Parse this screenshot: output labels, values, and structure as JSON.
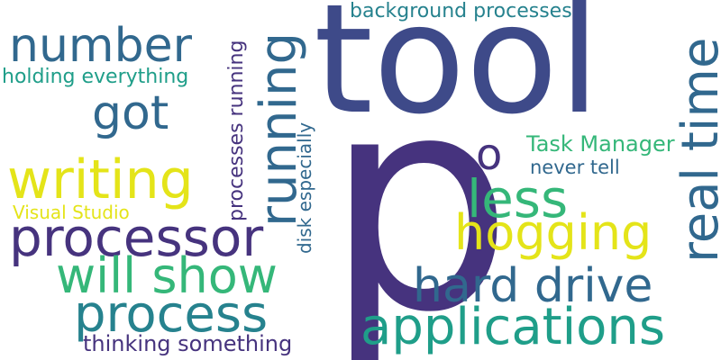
{
  "words": {
    "tool": "tool",
    "p": "p",
    "real_time": "real time",
    "running": "running",
    "number": "number",
    "got": "got",
    "writing": "writing",
    "processor": "processor",
    "will_show": "will show",
    "process": "process",
    "applications": "applications",
    "hard_drive": "hard drive",
    "hogging": "hogging",
    "less": "less",
    "o": "o",
    "task_manager": "Task Manager",
    "never_tell": "never tell",
    "background_processes": "background processes",
    "holding_everything": "holding everything",
    "processes_running": "processes running",
    "disk_especially": "disk especially",
    "visual_studio": "Visual Studio",
    "thinking_something": "thinking something"
  },
  "colors": {
    "dark_indigo": "#46337e",
    "navy": "#3e4a89",
    "steel_blue": "#31688e",
    "teal": "#26828e",
    "sea_green": "#1f9e89",
    "green": "#35b779",
    "light_green": "#6ece58",
    "yellow": "#e4e419"
  }
}
